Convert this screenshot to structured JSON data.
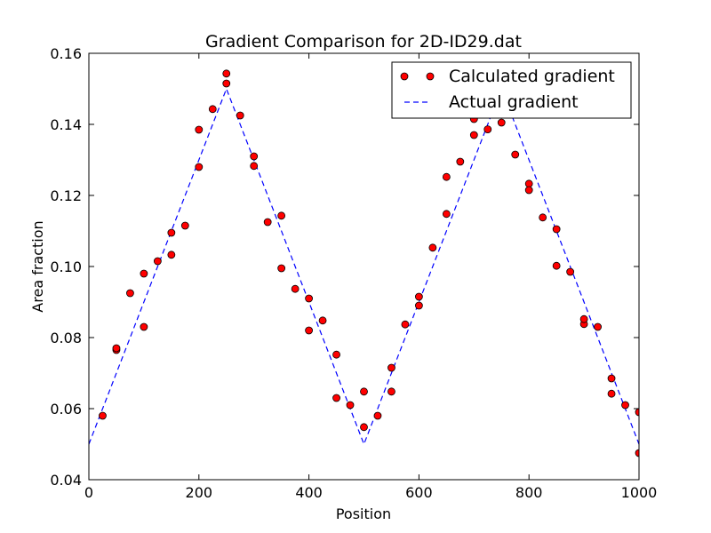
{
  "chart_data": {
    "type": "scatter",
    "title": "Gradient Comparison for 2D-ID29.dat",
    "xlabel": "Position",
    "ylabel": "Area fraction",
    "xlim": [
      0,
      1000
    ],
    "ylim": [
      0.04,
      0.16
    ],
    "xticks": [
      0,
      200,
      400,
      600,
      800,
      1000
    ],
    "xtick_labels": [
      "0",
      "200",
      "400",
      "600",
      "800",
      "1000"
    ],
    "yticks": [
      0.04,
      0.06,
      0.08,
      0.1,
      0.12,
      0.14,
      0.16
    ],
    "ytick_labels": [
      "0.04",
      "0.06",
      "0.08",
      "0.10",
      "0.12",
      "0.14",
      "0.16"
    ],
    "grid": false,
    "legend_position": "top-right",
    "series": [
      {
        "name": "Calculated gradient",
        "style": "markers",
        "color": "#ff0000",
        "edge_color": "#000000",
        "x": [
          25,
          50,
          50,
          75,
          100,
          100,
          125,
          150,
          150,
          175,
          200,
          200,
          225,
          250,
          250,
          275,
          300,
          300,
          325,
          350,
          350,
          375,
          400,
          400,
          425,
          450,
          450,
          475,
          500,
          500,
          525,
          550,
          550,
          575,
          600,
          600,
          625,
          650,
          650,
          675,
          700,
          700,
          725,
          750,
          775,
          800,
          800,
          825,
          850,
          850,
          875,
          900,
          900,
          925,
          950,
          950,
          975,
          1000,
          1000
        ],
        "y": [
          0.058,
          0.0765,
          0.077,
          0.0925,
          0.083,
          0.098,
          0.1015,
          0.1095,
          0.1033,
          0.1115,
          0.128,
          0.1385,
          0.1443,
          0.1515,
          0.1543,
          0.1425,
          0.1283,
          0.131,
          0.1125,
          0.0995,
          0.1143,
          0.0937,
          0.082,
          0.091,
          0.0848,
          0.063,
          0.0752,
          0.061,
          0.0548,
          0.0648,
          0.058,
          0.0648,
          0.0715,
          0.0837,
          0.089,
          0.0915,
          0.1053,
          0.1148,
          0.1252,
          0.1295,
          0.137,
          0.1415,
          0.1386,
          0.1405,
          0.1315,
          0.1233,
          0.1215,
          0.1138,
          0.1002,
          0.1105,
          0.0985,
          0.0838,
          0.0852,
          0.083,
          0.0642,
          0.0685,
          0.061,
          0.059,
          0.0475
        ]
      },
      {
        "name": "Actual gradient",
        "style": "dashed-line",
        "color": "#0000ff",
        "x": [
          0,
          250,
          500,
          750,
          1000
        ],
        "y": [
          0.05,
          0.15,
          0.05,
          0.15,
          0.05
        ]
      }
    ]
  }
}
